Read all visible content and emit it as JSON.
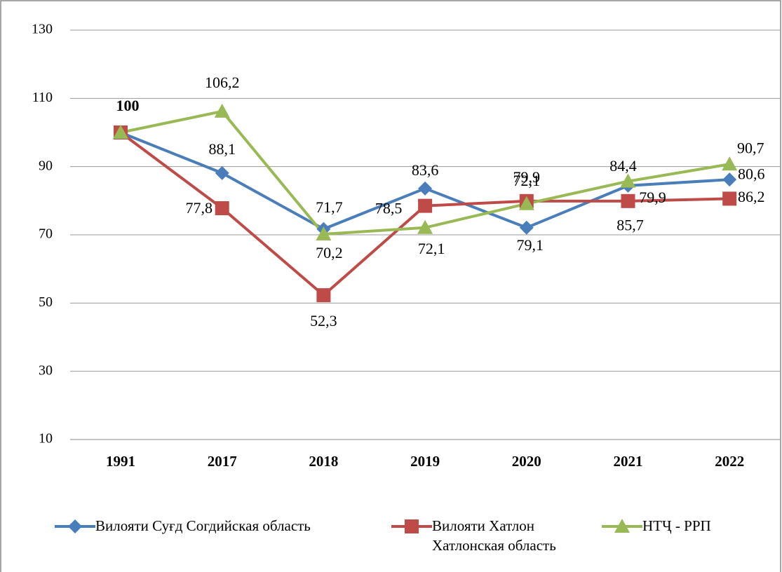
{
  "chart_data": {
    "type": "line",
    "categories": [
      "1991",
      "2017",
      "2018",
      "2019",
      "2020",
      "2021",
      "2022"
    ],
    "series": [
      {
        "name": "Вилояти Суғд Согдийская область",
        "color": "#4a7ebb",
        "marker": "diamond",
        "values": [
          100,
          88.1,
          71.7,
          83.6,
          72.1,
          84.4,
          86.2
        ],
        "value_labels": [
          "100",
          "88,1",
          "71,7",
          "83,6",
          "72,1",
          "84,4",
          "86,2"
        ]
      },
      {
        "name": "Вилояти Хатлон Хатлонская область",
        "color": "#be4b48",
        "marker": "square",
        "values": [
          100,
          77.8,
          52.3,
          78.5,
          79.9,
          79.9,
          80.6
        ],
        "value_labels": [
          null,
          "77,8",
          "52,3",
          "78,5",
          "79,9",
          "79,9",
          "80,6"
        ]
      },
      {
        "name": "НТҶ - РРП",
        "color": "#98b954",
        "marker": "triangle",
        "values": [
          100,
          106.2,
          70.2,
          72.1,
          79.1,
          85.7,
          90.7
        ],
        "value_labels": [
          null,
          "106,2",
          "70,2",
          "72,1",
          "79,1",
          "85,7",
          "90,7"
        ]
      }
    ],
    "ylim": [
      10,
      130
    ],
    "yticks": [
      10,
      30,
      50,
      70,
      90,
      110,
      130
    ],
    "grid": true,
    "legend": "bottom"
  }
}
